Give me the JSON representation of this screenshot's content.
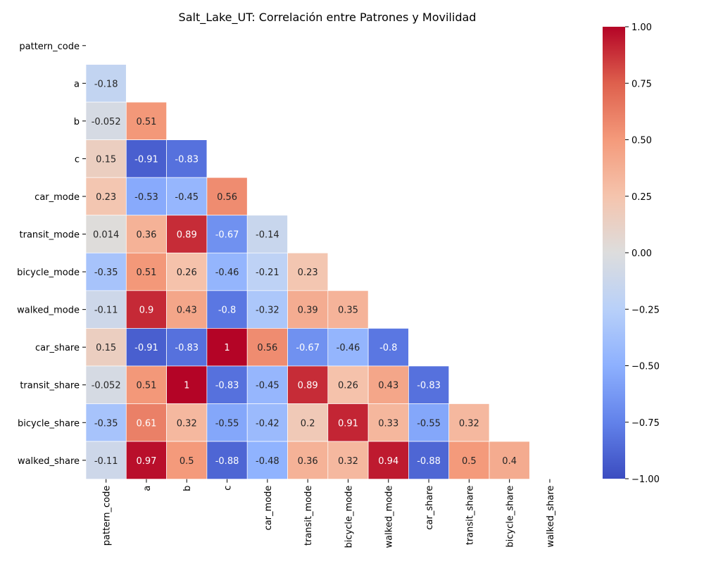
{
  "chart_data": {
    "type": "heatmap",
    "title": "Salt_Lake_UT: Correlación entre Patrones y Movilidad",
    "variables": [
      "pattern_code",
      "a",
      "b",
      "c",
      "car_mode",
      "transit_mode",
      "bicycle_mode",
      "walked_mode",
      "car_share",
      "transit_share",
      "bicycle_share",
      "walked_share"
    ],
    "lower_triangle": [
      [],
      [
        "-0.18"
      ],
      [
        "-0.052",
        "0.51"
      ],
      [
        "0.15",
        "-0.91",
        "-0.83"
      ],
      [
        "0.23",
        "-0.53",
        "-0.45",
        "0.56"
      ],
      [
        "0.014",
        "0.36",
        "0.89",
        "-0.67",
        "-0.14"
      ],
      [
        "-0.35",
        "0.51",
        "0.26",
        "-0.46",
        "-0.21",
        "0.23"
      ],
      [
        "-0.11",
        "0.9",
        "0.43",
        "-0.8",
        "-0.32",
        "0.39",
        "0.35"
      ],
      [
        "0.15",
        "-0.91",
        "-0.83",
        "1",
        "0.56",
        "-0.67",
        "-0.46",
        "-0.8"
      ],
      [
        "-0.052",
        "0.51",
        "1",
        "-0.83",
        "-0.45",
        "0.89",
        "0.26",
        "0.43",
        "-0.83"
      ],
      [
        "-0.35",
        "0.61",
        "0.32",
        "-0.55",
        "-0.42",
        "0.2",
        "0.91",
        "0.33",
        "-0.55",
        "0.32"
      ],
      [
        "-0.11",
        "0.97",
        "0.5",
        "-0.88",
        "-0.48",
        "0.36",
        "0.32",
        "0.94",
        "-0.88",
        "0.5",
        "0.4"
      ]
    ],
    "mask": "upper triangle including diagonal",
    "colormap": "coolwarm",
    "vmin": -1,
    "vmax": 1,
    "colorbar_ticks": [
      "1.00",
      "0.75",
      "0.50",
      "0.25",
      "0.00",
      "−0.25",
      "−0.50",
      "−0.75",
      "−1.00"
    ],
    "cell_border_color": "#ffffff"
  }
}
